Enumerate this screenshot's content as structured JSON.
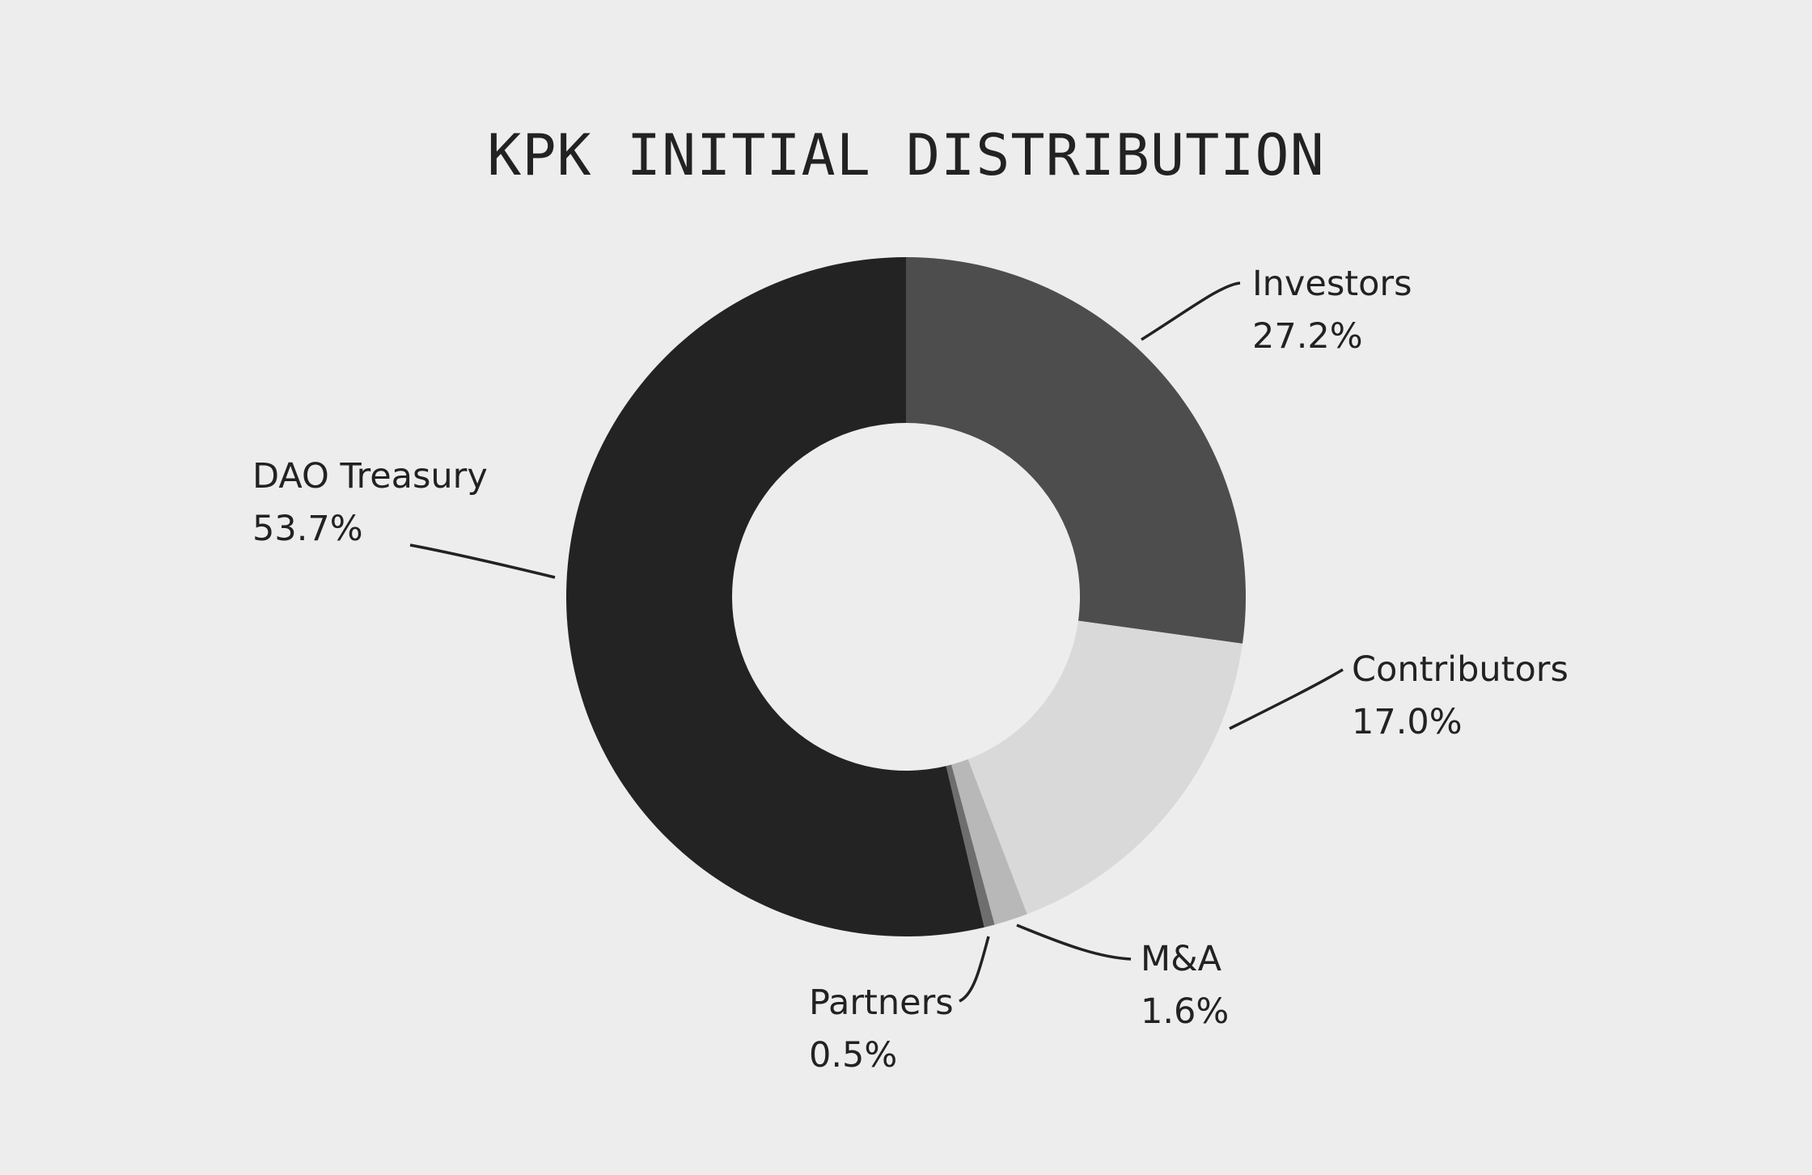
{
  "chart_data": {
    "type": "pie",
    "variant": "donut",
    "title": "KPK INITIAL DISTRIBUTION",
    "slices": [
      {
        "name": "Investors",
        "value": 27.2,
        "label": "27.2%",
        "color": "#4d4d4d"
      },
      {
        "name": "Contributors",
        "value": 17.0,
        "label": "17.0%",
        "color": "#d9d9d9"
      },
      {
        "name": "M&A",
        "value": 1.6,
        "label": "1.6%",
        "color": "#b8b8b8"
      },
      {
        "name": "Partners",
        "value": 0.5,
        "label": "0.5%",
        "color": "#6e6e6e"
      },
      {
        "name": "DAO Treasury",
        "value": 53.7,
        "label": "53.7%",
        "color": "#232323"
      }
    ],
    "start_angle_deg": 0,
    "direction": "clockwise",
    "legend": "none",
    "labels": "outside with leader lines"
  },
  "colors": {
    "background": "#ededed",
    "text": "#222222"
  }
}
